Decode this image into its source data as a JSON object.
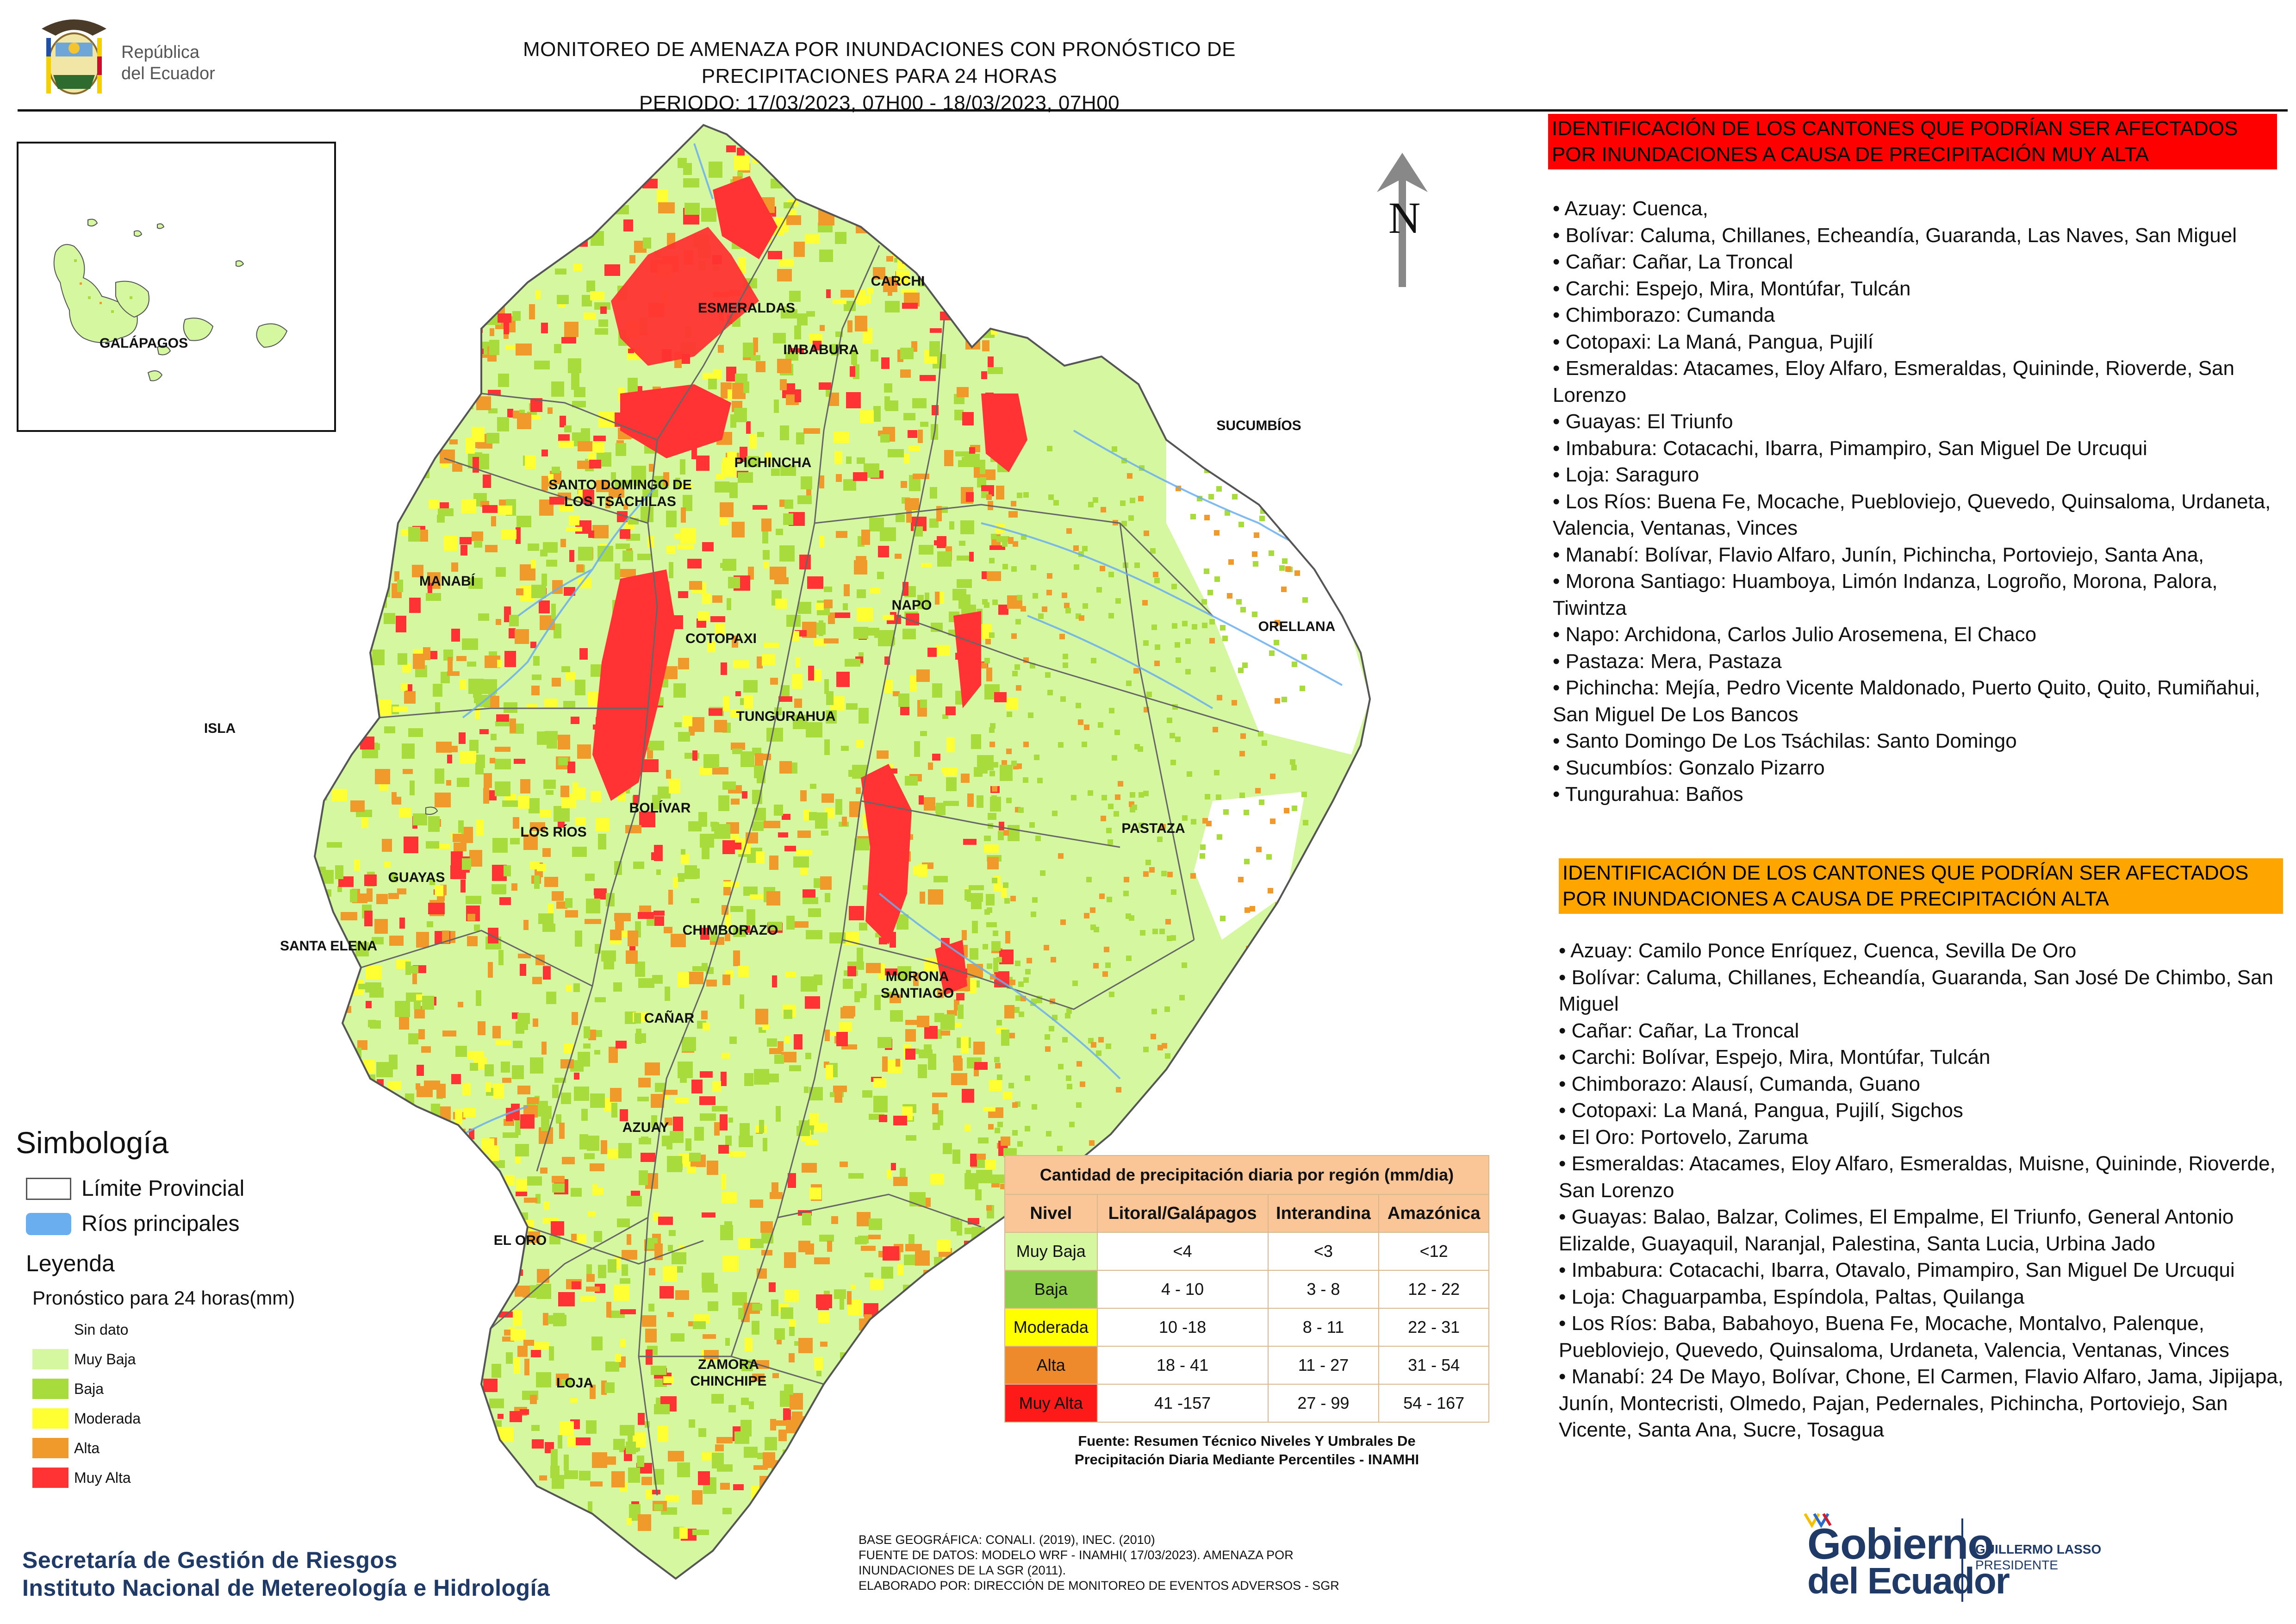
{
  "header": {
    "logo_text_1": "República",
    "logo_text_2": "del Ecuador",
    "title_line1": "MONITOREO DE AMENAZA POR INUNDACIONES  CON PRONÓSTICO DE  PRECIPITACIONES PARA 24 HORAS",
    "title_line2": "PERIODO: 17/03/2023, 07H00 - 18/03/2023, 07H00"
  },
  "inset": {
    "label": "GALÁPAGOS"
  },
  "north_label": "N",
  "map_labels": {
    "carchi": "CARCHI",
    "esmeraldas": "ESMERALDAS",
    "imbabura": "IMBABURA",
    "sucumbios": "SUCUMBÍOS",
    "pichincha": "PICHINCHA",
    "santo_domingo": "SANTO DOMINGO DE LOS TSÁCHILAS",
    "manabi": "MANABÍ",
    "napo": "NAPO",
    "orellana": "ORELLANA",
    "cotopaxi": "COTOPAXI",
    "isla": "ISLA",
    "tungurahua": "TUNGURAHUA",
    "bolivar": "BOLÍVAR",
    "los_rios": "LOS RÍOS",
    "pastaza": "PASTAZA",
    "guayas": "GUAYAS",
    "chimborazo": "CHIMBORAZO",
    "santa_elena": "SANTA ELENA",
    "morona": "MORONA SANTIAGO",
    "canar": "CAÑAR",
    "azuay": "AZUAY",
    "el_oro": "EL ORO",
    "loja": "LOJA",
    "zamora": "ZAMORA CHINCHIPE"
  },
  "alert_red": {
    "header": "IDENTIFICACIÓN DE LOS CANTONES QUE PODRÍAN SER AFECTADOS POR INUNDACIONES  A CAUSA DE PRECIPITACIÓN MUY ALTA",
    "items": [
      "• Azuay: Cuenca,",
      "• Bolívar: Caluma, Chillanes, Echeandía, Guaranda, Las Naves, San Miguel",
      "• Cañar: Cañar, La Troncal",
      "• Carchi: Espejo, Mira, Montúfar, Tulcán",
      "• Chimborazo: Cumanda",
      "• Cotopaxi: La Maná, Pangua, Pujilí",
      "• Esmeraldas: Atacames, Eloy Alfaro, Esmeraldas, Quininde, Rioverde, San Lorenzo",
      "• Guayas: El Triunfo",
      "• Imbabura: Cotacachi, Ibarra, Pimampiro, San Miguel De Urcuqui",
      "• Loja: Saraguro",
      "• Los Ríos: Buena Fe, Mocache, Puebloviejo, Quevedo, Quinsaloma, Urdaneta, Valencia, Ventanas, Vinces",
      "• Manabí: Bolívar, Flavio Alfaro, Junín, Pichincha, Portoviejo, Santa Ana,",
      "• Morona Santiago: Huamboya, Limón Indanza, Logroño, Morona, Palora, Tiwintza",
      "• Napo: Archidona, Carlos Julio Arosemena, El Chaco",
      "• Pastaza: Mera, Pastaza",
      "• Pichincha: Mejía, Pedro Vicente Maldonado, Puerto Quito, Quito, Rumiñahui, San Miguel De Los Bancos",
      "• Santo Domingo De Los Tsáchilas: Santo Domingo",
      "• Sucumbíos: Gonzalo Pizarro",
      "• Tungurahua: Baños"
    ]
  },
  "alert_orange": {
    "header": "IDENTIFICACIÓN DE LOS CANTONES QUE  PODRÍAN SER AFECTADOS POR INUNDACIONES  A CAUSA DE PRECIPITACIÓN ALTA",
    "items": [
      "• Azuay: Camilo Ponce Enríquez, Cuenca, Sevilla De Oro",
      "• Bolívar: Caluma, Chillanes, Echeandía, Guaranda, San José De Chimbo, San Miguel",
      "• Cañar: Cañar, La Troncal",
      "• Carchi: Bolívar, Espejo, Mira, Montúfar, Tulcán",
      "• Chimborazo: Alausí, Cumanda, Guano",
      "• Cotopaxi: La Maná, Pangua, Pujilí, Sigchos",
      "• El Oro: Portovelo, Zaruma",
      "• Esmeraldas: Atacames, Eloy Alfaro, Esmeraldas, Muisne, Quininde, Rioverde, San Lorenzo",
      "• Guayas: Balao, Balzar, Colimes, El Empalme, El Triunfo, General Antonio Elizalde, Guayaquil, Naranjal, Palestina, Santa Lucia, Urbina Jado",
      "• Imbabura: Cotacachi, Ibarra, Otavalo, Pimampiro, San Miguel De Urcuqui",
      "• Loja: Chaguarpamba, Espíndola, Paltas, Quilanga",
      "• Los Ríos: Baba, Babahoyo, Buena Fe, Mocache, Montalvo, Palenque, Puebloviejo, Quevedo, Quinsaloma, Urdaneta, Valencia, Ventanas, Vinces",
      "• Manabí: 24 De Mayo, Bolívar, Chone, El Carmen, Flavio Alfaro, Jama, Jipijapa, Junín, Montecristi, Olmedo, Pajan, Pedernales, Pichincha, Portoviejo, San Vicente, Santa Ana, Sucre, Tosagua"
    ]
  },
  "simbologia": {
    "title": "Simbología",
    "limite": "Límite Provincial",
    "rios": "Ríos principales",
    "leyenda_title": "Leyenda",
    "pronostico": "Pronóstico para 24 horas(mm)",
    "items": [
      {
        "label": "Sin dato",
        "color": "#ffffff"
      },
      {
        "label": "Muy Baja",
        "color": "#d4f7a0"
      },
      {
        "label": "Baja",
        "color": "#a8dc3c"
      },
      {
        "label": "Moderada",
        "color": "#ffff33"
      },
      {
        "label": "Alta",
        "color": "#ef9a2a"
      },
      {
        "label": "Muy Alta",
        "color": "#ff3333"
      }
    ]
  },
  "precip_table": {
    "title": "Cantidad de precipitación diaria por región (mm/dia)",
    "headers": [
      "Nivel",
      "Litoral/Galápagos",
      "Interandina",
      "Amazónica"
    ],
    "rows": [
      {
        "nivel": "Muy Baja",
        "color": "#d4f7a0",
        "lit": "<4",
        "int": "<3",
        "ama": "<12"
      },
      {
        "nivel": "Baja",
        "color": "#8fce4a",
        "lit": "4 - 10",
        "int": "3 - 8",
        "ama": "12 - 22"
      },
      {
        "nivel": "Moderada",
        "color": "#ffff00",
        "lit": "10 -18",
        "int": "8 - 11",
        "ama": "22 - 31"
      },
      {
        "nivel": "Alta",
        "color": "#ee8a2c",
        "lit": "18 - 41",
        "int": "11 - 27",
        "ama": "31 - 54"
      },
      {
        "nivel": "Muy Alta",
        "color": "#ff1a1a",
        "lit": "41 -157",
        "int": "27 - 99",
        "ama": "54 - 167"
      }
    ],
    "source_line1": "Fuente: Resumen Técnico Niveles Y Umbrales De",
    "source_line2": "Precipitación Diaria Mediante Percentiles - INAMHI"
  },
  "footer": {
    "org_line1": "Secretaría de Gestión de Riesgos",
    "org_line2": "Instituto Nacional de Metereología e Hidrología",
    "meta_line1": "BASE GEOGRÁFICA: CONALI. (2019), INEC. (2010)",
    "meta_line2": "FUENTE DE DATOS: MODELO WRF - INAMHI( 17/03/2023).  AMENAZA POR",
    "meta_line3": "INUNDACIONES DE LA SGR  (2011).",
    "meta_line4": "ELABORADO POR: DIRECCIÓN DE MONITOREO DE EVENTOS ADVERSOS - SGR",
    "gob_line1": "Gobierno",
    "gob_line2": "del Ecuador",
    "president_line1": "GUILLERMO LASSO",
    "president_line2": "PRESIDENTE"
  }
}
